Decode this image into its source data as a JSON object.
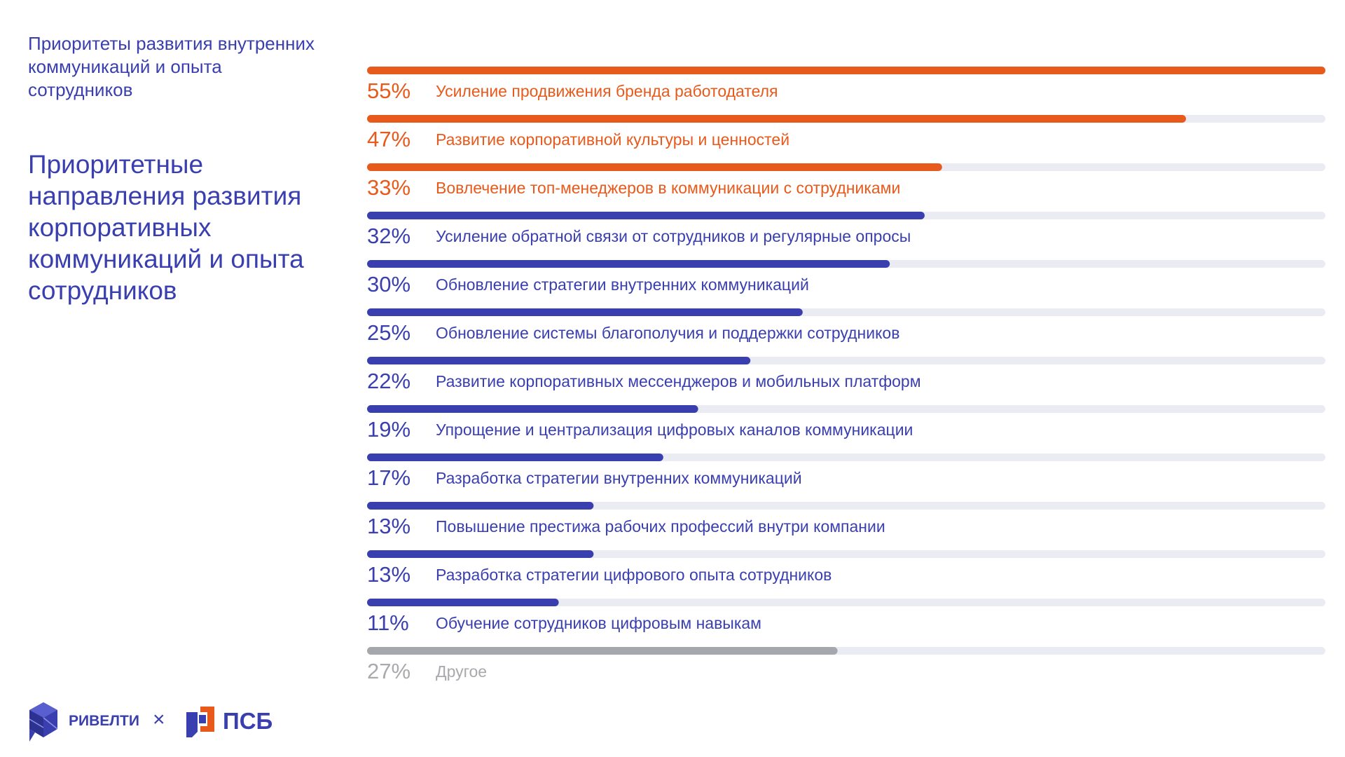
{
  "header": {
    "subtitle": "Приоритеты развития внутренних коммуникаций и опыта сотрудников",
    "title": "Приоритетные направления развития корпоративных коммуникаций и опыта сотрудников"
  },
  "colors": {
    "highlight": "#e85a1c",
    "primary": "#3a3fb0",
    "other": "#a6a6ad",
    "track": "#ebebf3",
    "other_text": "#a9a9ae"
  },
  "chart_data": {
    "type": "bar",
    "orientation": "horizontal",
    "title": "Приоритетные направления развития корпоративных коммуникаций и опыта сотрудников",
    "unit": "%",
    "xlim": [
      0,
      55
    ],
    "bars": [
      {
        "value": 55,
        "label_value": "55%",
        "category": "Усиление продвижения бренда работодателя",
        "group": "highlight"
      },
      {
        "value": 47,
        "label_value": "47%",
        "category": "Развитие корпоративной культуры и ценностей",
        "group": "highlight"
      },
      {
        "value": 33,
        "label_value": "33%",
        "category": "Вовлечение топ-менеджеров в коммуникации с сотрудниками",
        "group": "highlight"
      },
      {
        "value": 32,
        "label_value": "32%",
        "category": "Усиление обратной связи от сотрудников и регулярные опросы",
        "group": "primary"
      },
      {
        "value": 30,
        "label_value": "30%",
        "category": "Обновление стратегии внутренних коммуникаций",
        "group": "primary"
      },
      {
        "value": 25,
        "label_value": "25%",
        "category": "Обновление системы благополучия и поддержки сотрудников",
        "group": "primary"
      },
      {
        "value": 22,
        "label_value": "22%",
        "category": "Развитие корпоративных мессенджеров и мобильных платформ",
        "group": "primary"
      },
      {
        "value": 19,
        "label_value": "19%",
        "category": "Упрощение и централизация цифровых каналов коммуникации",
        "group": "primary"
      },
      {
        "value": 17,
        "label_value": "17%",
        "category": "Разработка стратегии внутренних коммуникаций",
        "group": "primary"
      },
      {
        "value": 13,
        "label_value": "13%",
        "category": "Повышение престижа рабочих профессий внутри компании",
        "group": "primary"
      },
      {
        "value": 13,
        "label_value": "13%",
        "category": "Разработка стратегии цифрового опыта сотрудников",
        "group": "primary"
      },
      {
        "value": 11,
        "label_value": "11%",
        "category": "Обучение сотрудников цифровым навыкам",
        "group": "primary"
      },
      {
        "value": 27,
        "label_value": "27%",
        "category": "Другое",
        "group": "other"
      }
    ]
  },
  "footer": {
    "brand_left": "РИВЕЛТИ",
    "separator": "×",
    "brand_right": "ПСБ",
    "left_logo_icon": "rivelti-cube-icon",
    "right_logo_icon": "psb-logo-icon"
  }
}
